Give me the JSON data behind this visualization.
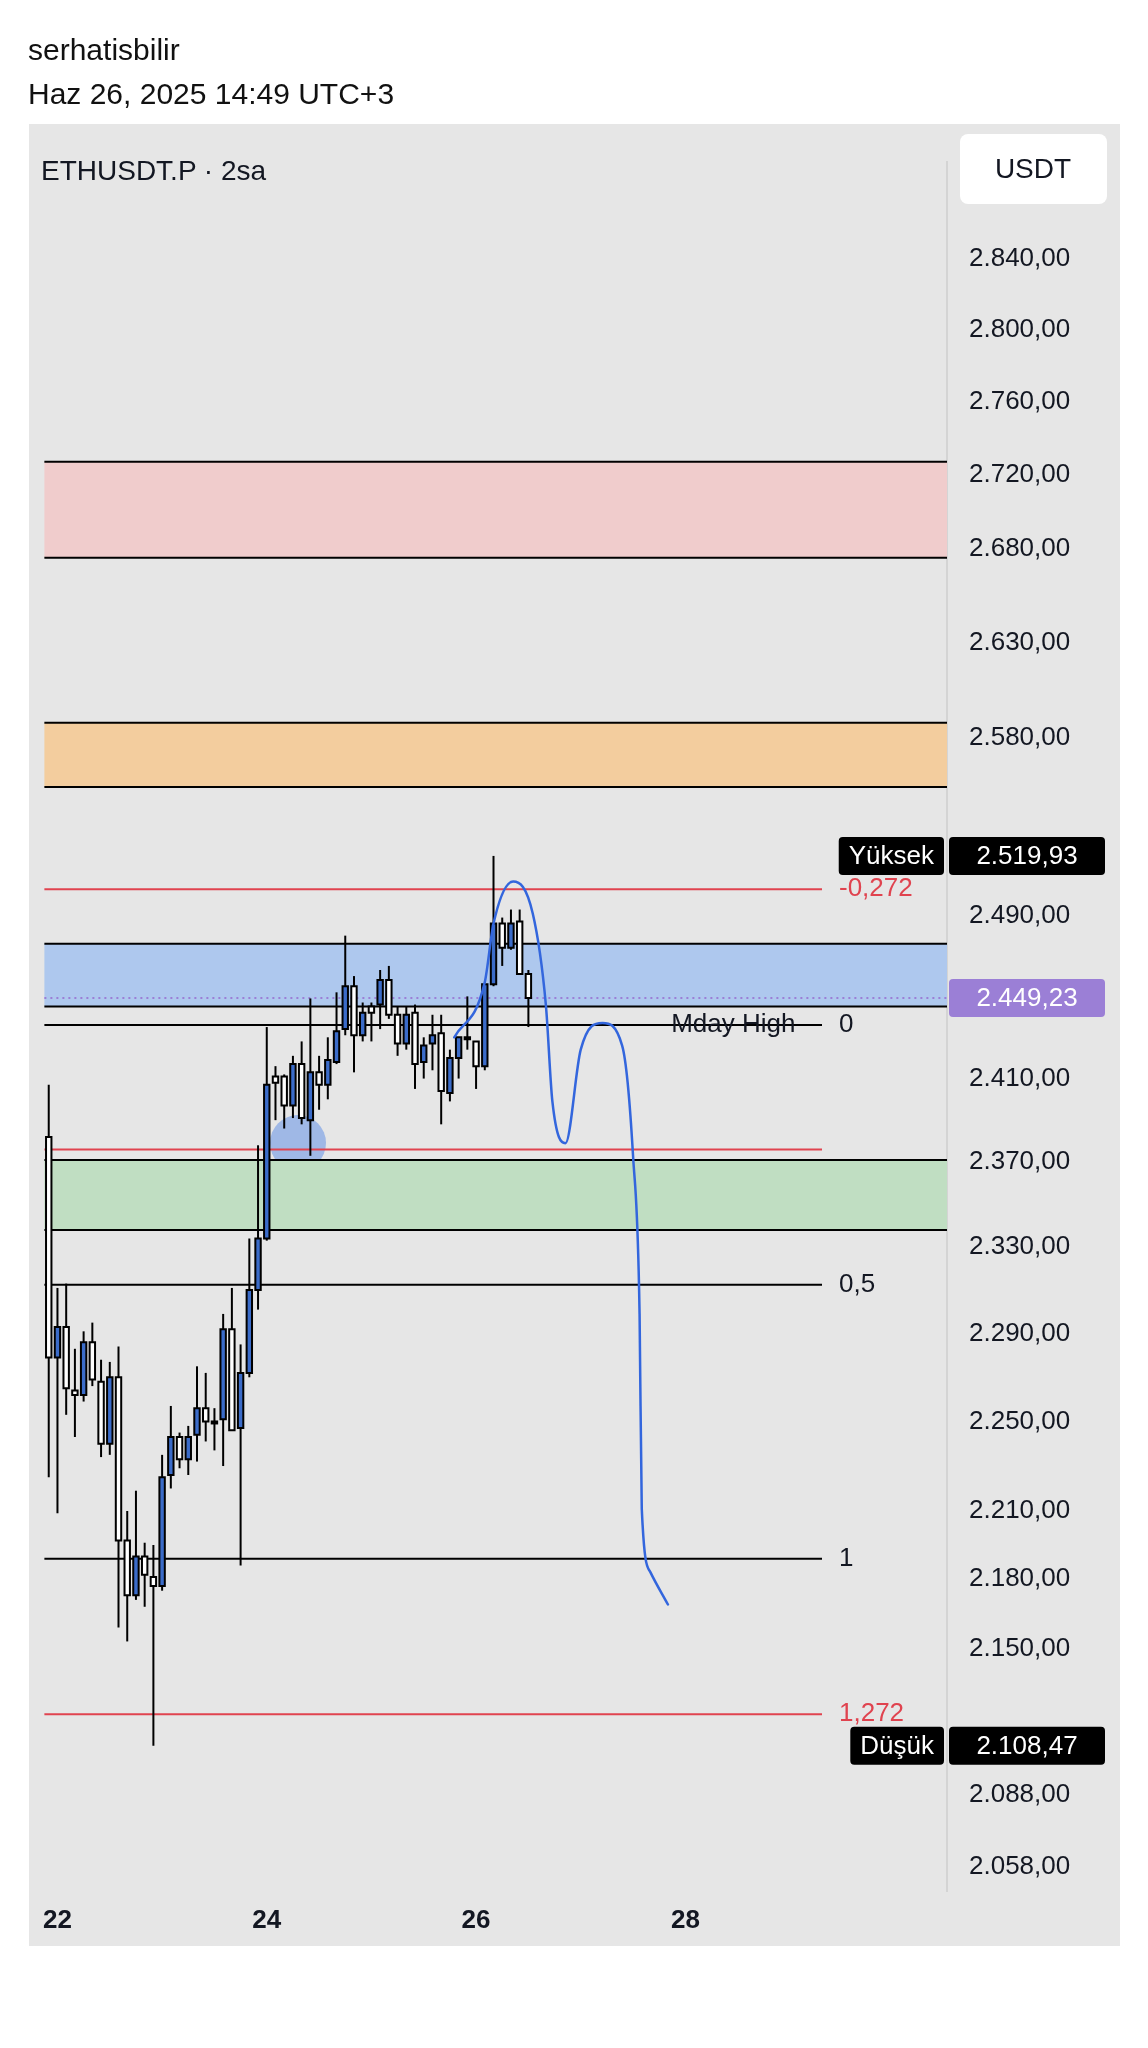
{
  "chart_data": {
    "type": "candlestick",
    "title": "ETHUSDT.P · 2sa",
    "ylabel": "USDT",
    "annotations": [
      "serhatisbilir",
      "Haz 26, 2025 14:49 UTC+3",
      "Yüksek",
      "2.519,93",
      "Düşük",
      "2.108,47",
      "-0,272",
      "0",
      "0,5",
      "1",
      "1,272",
      {
        "text": "Mday High",
        "x": "2025-06-28T11:00",
        "y": 2436
      }
    ],
    "log": "y",
    "xlim": [
      "2025-06-21T21:00",
      "2025-06-30T12:00"
    ],
    "xticks": [
      {
        "value": "2025-06-22",
        "label": "22"
      },
      {
        "value": "2025-06-24",
        "label": "24"
      },
      {
        "value": "2025-06-26",
        "label": "26"
      },
      {
        "value": "2025-06-28",
        "label": "28"
      }
    ],
    "ylim": [
      2048,
      2896
    ],
    "yticks": [
      {
        "value": 2840,
        "label": "2.840,00"
      },
      {
        "value": 2800,
        "label": "2.800,00"
      },
      {
        "value": 2760,
        "label": "2.760,00"
      },
      {
        "value": 2720,
        "label": "2.720,00"
      },
      {
        "value": 2680,
        "label": "2.680,00"
      },
      {
        "value": 2630,
        "label": "2.630,00"
      },
      {
        "value": 2580,
        "label": "2.580,00"
      },
      {
        "value": 2490,
        "label": "2.490,00"
      },
      {
        "value": 2410,
        "label": "2.410,00"
      },
      {
        "value": 2370,
        "label": "2.370,00"
      },
      {
        "value": 2330,
        "label": "2.330,00"
      },
      {
        "value": 2290,
        "label": "2.290,00"
      },
      {
        "value": 2250,
        "label": "2.250,00"
      },
      {
        "value": 2210,
        "label": "2.210,00"
      },
      {
        "value": 2180,
        "label": "2.180,00"
      },
      {
        "value": 2150,
        "label": "2.150,00"
      },
      {
        "value": 2088,
        "label": "2.088,00"
      },
      {
        "value": 2058,
        "label": "2.058,00"
      }
    ],
    "bands": [
      {
        "axis": "y",
        "from": 2675,
        "to": 2727,
        "color": "#f0cccc"
      },
      {
        "axis": "y",
        "from": 2555,
        "to": 2588,
        "color": "#f3cd9e"
      },
      {
        "axis": "y",
        "from": 2445,
        "to": 2476,
        "color": "#aec8ee"
      },
      {
        "axis": "y",
        "from": 2338,
        "to": 2371,
        "color": "#c0dec2"
      }
    ],
    "ref_lines": [
      {
        "axis": "y",
        "value": 2503.2,
        "color": "#e0434f"
      },
      {
        "axis": "y",
        "value": 2436,
        "color": "#000000"
      },
      {
        "axis": "y",
        "value": 2312.5,
        "color": "#000000"
      },
      {
        "axis": "y",
        "value": 2189,
        "color": "#000000"
      },
      {
        "axis": "y",
        "value": 2121.8,
        "color": "#e0434f"
      },
      {
        "axis": "y",
        "value": 2376,
        "color": "#e0434f"
      },
      {
        "axis": "y",
        "value": 2449.23,
        "label": "2.449,23",
        "color": "#9b7fd6",
        "line_style": "dotted"
      }
    ],
    "series": [
      {
        "colors": [
          "#ffffff",
          "#3b6cc9",
          "#ffffff",
          "#ffffff",
          "#3b6cc9",
          "#ffffff",
          "#ffffff",
          "#3b6cc9",
          "#ffffff",
          "#ffffff",
          "#3b6cc9",
          "#ffffff",
          "#ffffff",
          "#3b6cc9",
          "#3b6cc9",
          "#ffffff",
          "#3b6cc9",
          "#3b6cc9",
          "#ffffff",
          "#3b6cc9",
          "#3b6cc9",
          "#ffffff",
          "#3b6cc9",
          "#3b6cc9",
          "#3b6cc9",
          "#3b6cc9",
          "#ffffff",
          "#ffffff",
          "#3b6cc9",
          "#ffffff",
          "#3b6cc9",
          "#ffffff",
          "#3b6cc9",
          "#3b6cc9",
          "#3b6cc9",
          "#ffffff",
          "#3b6cc9",
          "#ffffff",
          "#3b6cc9",
          "#ffffff",
          "#ffffff",
          "#3b6cc9",
          "#ffffff",
          "#3b6cc9",
          "#3b6cc9",
          "#ffffff",
          "#3b6cc9",
          "#3b6cc9",
          "#ffffff",
          "#ffffff",
          "#3b6cc9",
          "#3b6cc9",
          "#ffffff",
          "#3b6cc9",
          "#ffffff",
          "#ffffff"
        ],
        "x": [
          "2025-06-21T22:00",
          "2025-06-22T00:00",
          "2025-06-22T02:00",
          "2025-06-22T04:00",
          "2025-06-22T06:00",
          "2025-06-22T08:00",
          "2025-06-22T10:00",
          "2025-06-22T12:00",
          "2025-06-22T14:00",
          "2025-06-22T16:00",
          "2025-06-22T18:00",
          "2025-06-22T20:00",
          "2025-06-22T22:00",
          "2025-06-23T00:00",
          "2025-06-23T02:00",
          "2025-06-23T04:00",
          "2025-06-23T06:00",
          "2025-06-23T08:00",
          "2025-06-23T10:00",
          "2025-06-23T12:00",
          "2025-06-23T14:00",
          "2025-06-23T16:00",
          "2025-06-23T18:00",
          "2025-06-23T20:00",
          "2025-06-23T22:00",
          "2025-06-24T00:00",
          "2025-06-24T02:00",
          "2025-06-24T04:00",
          "2025-06-24T06:00",
          "2025-06-24T08:00",
          "2025-06-24T10:00",
          "2025-06-24T12:00",
          "2025-06-24T14:00",
          "2025-06-24T16:00",
          "2025-06-24T18:00",
          "2025-06-24T20:00",
          "2025-06-24T22:00",
          "2025-06-25T00:00",
          "2025-06-25T02:00",
          "2025-06-25T04:00",
          "2025-06-25T06:00",
          "2025-06-25T08:00",
          "2025-06-25T10:00",
          "2025-06-25T12:00",
          "2025-06-25T14:00",
          "2025-06-25T16:00",
          "2025-06-25T18:00",
          "2025-06-25T20:00",
          "2025-06-25T22:00",
          "2025-06-26T00:00",
          "2025-06-26T02:00",
          "2025-06-26T04:00",
          "2025-06-26T06:00",
          "2025-06-26T08:00",
          "2025-06-26T10:00",
          "2025-06-26T12:00"
        ],
        "ohlc": [
          [
            2382,
            2407,
            2225,
            2279
          ],
          [
            2279,
            2311,
            2209,
            2293
          ],
          [
            2293,
            2313,
            2253,
            2265
          ],
          [
            2264,
            2283,
            2243,
            2262
          ],
          [
            2262,
            2291,
            2259,
            2286
          ],
          [
            2286,
            2295,
            2266,
            2269
          ],
          [
            2268,
            2278,
            2234,
            2240
          ],
          [
            2240,
            2277,
            2235,
            2270
          ],
          [
            2270,
            2284,
            2159,
            2197
          ],
          [
            2197,
            2210,
            2153,
            2173
          ],
          [
            2173,
            2219,
            2171,
            2190
          ],
          [
            2190,
            2196,
            2168,
            2182
          ],
          [
            2181,
            2195,
            2108.47,
            2177
          ],
          [
            2177,
            2235,
            2175,
            2225
          ],
          [
            2226,
            2257,
            2220,
            2243
          ],
          [
            2243,
            2245,
            2229,
            2233
          ],
          [
            2233,
            2248,
            2226,
            2243
          ],
          [
            2244,
            2275,
            2232,
            2256
          ],
          [
            2256,
            2272,
            2241,
            2250
          ],
          [
            2250,
            2256,
            2237,
            2250
          ],
          [
            2251,
            2299,
            2230,
            2292
          ],
          [
            2292,
            2311,
            2246,
            2246
          ],
          [
            2247,
            2285,
            2186,
            2272
          ],
          [
            2272,
            2334,
            2270,
            2310
          ],
          [
            2310,
            2378,
            2301,
            2334
          ],
          [
            2334,
            2435,
            2333,
            2407
          ],
          [
            2411,
            2416,
            2390,
            2408
          ],
          [
            2411,
            2412,
            2386,
            2397
          ],
          [
            2397,
            2421,
            2391,
            2417
          ],
          [
            2417,
            2428,
            2388,
            2391
          ],
          [
            2390,
            2449,
            2373,
            2413
          ],
          [
            2413,
            2421,
            2395,
            2407
          ],
          [
            2407,
            2430,
            2400,
            2419
          ],
          [
            2418,
            2452,
            2417,
            2433
          ],
          [
            2434,
            2480,
            2431,
            2455
          ],
          [
            2455,
            2460,
            2413,
            2431
          ],
          [
            2431,
            2447,
            2428,
            2442
          ],
          [
            2445,
            2447,
            2428,
            2442
          ],
          [
            2446,
            2463,
            2434,
            2458
          ],
          [
            2458,
            2465,
            2439,
            2441
          ],
          [
            2441,
            2445,
            2421,
            2427
          ],
          [
            2427,
            2445,
            2424,
            2441
          ],
          [
            2442,
            2446,
            2405,
            2417
          ],
          [
            2418,
            2430,
            2410,
            2426
          ],
          [
            2427,
            2441,
            2414,
            2431
          ],
          [
            2432,
            2441,
            2388,
            2404
          ],
          [
            2403,
            2424,
            2399,
            2420
          ],
          [
            2420,
            2430,
            2410,
            2430
          ],
          [
            2430,
            2450,
            2424,
            2429
          ],
          [
            2428,
            2428,
            2405,
            2416
          ],
          [
            2416,
            2456,
            2414,
            2456
          ],
          [
            2456,
            2519.93,
            2455,
            2486
          ],
          [
            2486,
            2489,
            2465,
            2474
          ],
          [
            2474,
            2493,
            2473,
            2486
          ],
          [
            2487,
            2493,
            2461,
            2461
          ],
          [
            2461,
            2463,
            2435,
            2449.23
          ]
        ]
      },
      {
        "type": "line",
        "color": "#3366dd",
        "x": [
          "2025-06-25T19:00",
          "2025-06-26T02:00",
          "2025-06-26T04:00",
          "2025-06-26T08:30",
          "2025-06-26T13:00",
          "2025-06-26T16:00",
          "2025-06-26T17:30",
          "2025-06-26T20:30",
          "2025-06-27T00:00",
          "2025-06-27T05:00",
          "2025-06-27T09:30",
          "2025-06-27T12:00",
          "2025-06-27T13:30",
          "2025-06-27T14:00",
          "2025-06-27T16:00",
          "2025-06-27T20:00"
        ],
        "values": [
          2430,
          2457,
          2486,
          2507,
          2491,
          2446,
          2399,
          2379,
          2424,
          2437,
          2426,
          2373,
          2299,
          2211,
          2183,
          2169
        ]
      }
    ]
  }
}
